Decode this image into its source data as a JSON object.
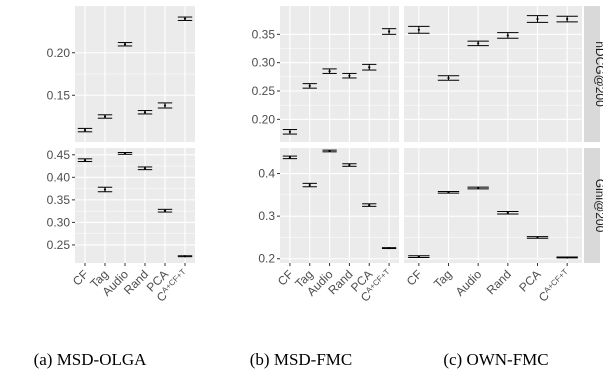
{
  "chart_data": {
    "type": "errorbar",
    "layout": "facet-grid",
    "categories": [
      "CF",
      "Tag",
      "Audio",
      "Rand",
      "PCA",
      "C^{A+CF+T}"
    ],
    "rows": [
      "nDCG@200",
      "Gini@200"
    ],
    "columns": [
      "(a) MSD-OLGA",
      "(b) MSD-FMC",
      "(c) OWN-FMC"
    ],
    "y_scales": {
      "col_a": {
        "nDCG@200": {
          "ylim": [
            0.095,
            0.255
          ],
          "ticks": [
            0.15,
            0.2
          ],
          "tick_labels": [
            "0.15",
            "0.20"
          ]
        },
        "Gini@200": {
          "ylim": [
            0.21,
            0.465
          ],
          "ticks": [
            0.25,
            0.3,
            0.35,
            0.4,
            0.45
          ],
          "tick_labels": [
            "0.25",
            "0.30",
            "0.35",
            "0.40",
            "0.45"
          ]
        }
      },
      "cols_bc": {
        "nDCG@200": {
          "ylim": [
            0.16,
            0.4
          ],
          "ticks": [
            0.2,
            0.25,
            0.3,
            0.35
          ],
          "tick_labels": [
            "0.20",
            "0.25",
            "0.30",
            "0.35"
          ]
        },
        "Gini@200": {
          "ylim": [
            0.19,
            0.46
          ],
          "ticks": [
            0.2,
            0.3,
            0.4
          ],
          "tick_labels": [
            "0.2",
            "0.3",
            "0.4"
          ]
        }
      }
    },
    "panels": [
      {
        "row": "nDCG@200",
        "column": "(a) MSD-OLGA",
        "scale": "col_a",
        "values": [
          0.109,
          0.125,
          0.21,
          0.13,
          0.138,
          0.24
        ],
        "errors": [
          0.002,
          0.002,
          0.002,
          0.002,
          0.003,
          0.002
        ]
      },
      {
        "row": "Gini@200",
        "column": "(a) MSD-OLGA",
        "scale": "col_a",
        "values": [
          0.438,
          0.373,
          0.453,
          0.42,
          0.326,
          0.225
        ],
        "errors": [
          0.003,
          0.005,
          0.002,
          0.003,
          0.003,
          0.001
        ]
      },
      {
        "row": "nDCG@200",
        "column": "(b) MSD-FMC",
        "scale": "cols_bc",
        "values": [
          0.178,
          0.259,
          0.285,
          0.277,
          0.292,
          0.355
        ],
        "errors": [
          0.004,
          0.004,
          0.004,
          0.004,
          0.005,
          0.005
        ]
      },
      {
        "row": "Gini@200",
        "column": "(b) MSD-FMC",
        "scale": "cols_bc",
        "values": [
          0.438,
          0.373,
          0.453,
          0.42,
          0.326,
          0.225
        ],
        "errors": [
          0.003,
          0.004,
          0.002,
          0.003,
          0.003,
          0.001
        ]
      },
      {
        "row": "nDCG@200",
        "column": "(c) OWN-FMC",
        "scale": "cols_bc",
        "values": [
          0.358,
          0.273,
          0.334,
          0.348,
          0.377,
          0.377
        ],
        "errors": [
          0.006,
          0.004,
          0.004,
          0.005,
          0.006,
          0.005
        ]
      },
      {
        "row": "Gini@200",
        "column": "(c) OWN-FMC",
        "scale": "cols_bc",
        "values": [
          0.205,
          0.356,
          0.366,
          0.308,
          0.25,
          0.203
        ],
        "errors": [
          0.002,
          0.002,
          0.002,
          0.003,
          0.002,
          0.001
        ]
      }
    ],
    "grid": true,
    "colors": {
      "panel_bg": "#ebebeb",
      "grid": "#ffffff",
      "strip_bg": "#d9d9d9",
      "mark": "#000000"
    }
  },
  "captions": [
    "(a) MSD-OLGA",
    "(b) MSD-FMC",
    "(c) OWN-FMC"
  ]
}
